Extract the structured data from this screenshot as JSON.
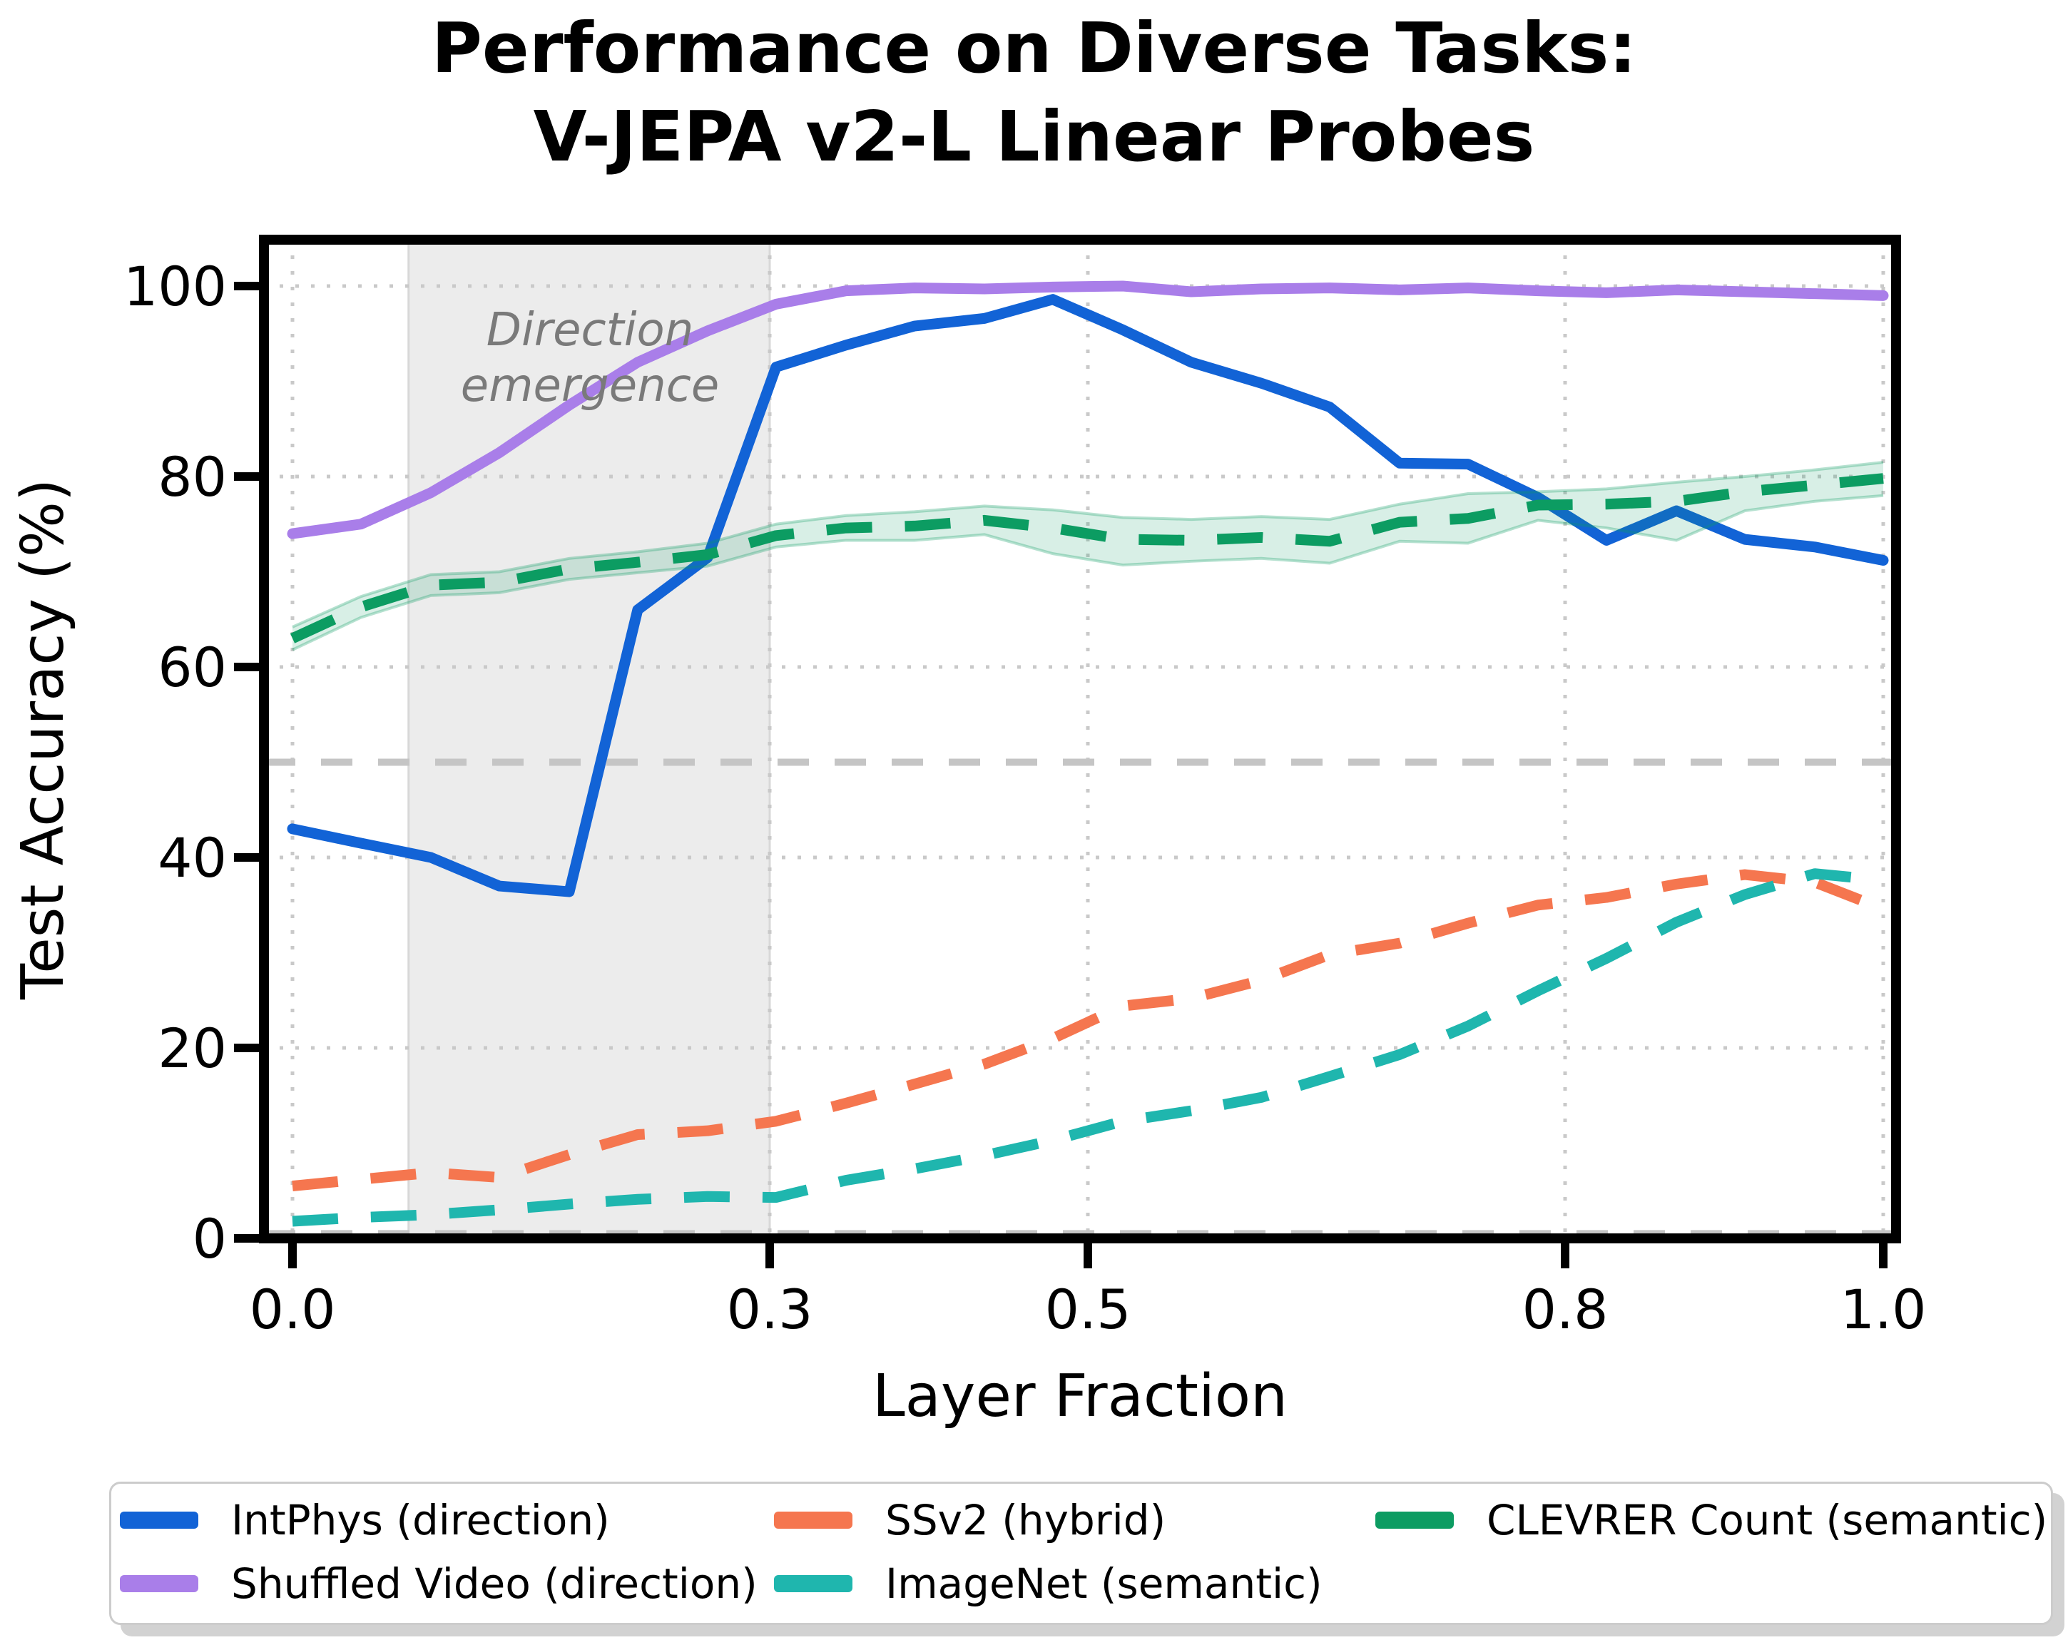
{
  "title": {
    "line1": "Performance on Diverse Tasks:",
    "line2": "V-JEPA v2-L Linear Probes"
  },
  "chart_data": {
    "type": "line",
    "title": "Performance on Diverse Tasks: V-JEPA v2-L Linear Probes",
    "xlabel": "Layer Fraction",
    "ylabel": "Test Accuracy (%)",
    "xlim": [
      -0.02,
      1.01
    ],
    "ylim": [
      0,
      105
    ],
    "grid": true,
    "legend_position": "bottom",
    "xticks": [
      "0.0",
      "0.3",
      "0.5",
      "0.8",
      "1.0"
    ],
    "xtick_values": [
      0.0,
      0.3,
      0.5,
      0.8,
      1.0
    ],
    "yticks": [
      "0",
      "20",
      "40",
      "60",
      "80",
      "100"
    ],
    "ytick_values": [
      0,
      20,
      40,
      60,
      80,
      100
    ],
    "chance_lines": [
      50,
      0.5
    ],
    "highlight_region": {
      "x0": 0.073,
      "x1": 0.3,
      "label_line1": "Direction",
      "label_line2": "emergence",
      "label": "Direction emergence",
      "fill_color": "#ececec",
      "label_color": "#7a7a7a"
    },
    "x": [
      0,
      0.043,
      0.087,
      0.13,
      0.174,
      0.217,
      0.261,
      0.304,
      0.348,
      0.391,
      0.435,
      0.478,
      0.522,
      0.565,
      0.609,
      0.652,
      0.696,
      0.739,
      0.783,
      0.826,
      0.87,
      0.913,
      0.957,
      1.0
    ],
    "series": [
      {
        "name": "IntPhys (direction)",
        "color": "#1263d6",
        "style": "solid",
        "values": [
          43,
          41.5,
          40,
          37,
          36.4,
          66,
          71.5,
          91.5,
          93.8,
          95.8,
          96.6,
          98.6,
          95.4,
          92,
          89.8,
          87.3,
          81.4,
          81.3,
          77.8,
          73.3,
          76.4,
          73.4,
          72.6,
          71.2
        ]
      },
      {
        "name": "Shuffled Video (direction)",
        "color": "#a97ee9",
        "style": "solid",
        "values": [
          74,
          75,
          78.3,
          82.5,
          87.5,
          92,
          95.3,
          98.1,
          99.5,
          99.8,
          99.7,
          99.9,
          100,
          99.4,
          99.7,
          99.8,
          99.6,
          99.8,
          99.5,
          99.3,
          99.6,
          99.4,
          99.2,
          99
        ]
      },
      {
        "name": "SSv2 (hybrid)",
        "color": "#f5764f",
        "style": "dashed",
        "values": [
          5.5,
          6.2,
          6.9,
          6.4,
          8.8,
          10.9,
          11.3,
          12.3,
          14.2,
          16.2,
          18.3,
          21,
          24.4,
          25.2,
          27.1,
          29.8,
          31,
          33.1,
          35,
          35.8,
          37.2,
          38.2,
          37.4,
          34.6
        ]
      },
      {
        "name": "ImageNet (semantic)",
        "color": "#1fb6ae",
        "style": "dashed",
        "values": [
          1.8,
          2.2,
          2.5,
          3,
          3.6,
          4.1,
          4.4,
          4.3,
          6.1,
          7.3,
          8.7,
          10.3,
          12.3,
          13.4,
          14.8,
          17,
          19.3,
          22.3,
          26,
          29.4,
          33.2,
          36.1,
          38.3,
          37.6
        ]
      },
      {
        "name": "CLEVRER Count (semantic)",
        "color": "#0c9c62",
        "style": "dashed",
        "values": [
          63,
          66.3,
          68.6,
          68.9,
          70.3,
          71,
          71.8,
          73.8,
          74.6,
          74.8,
          75.4,
          74.6,
          73.4,
          73.3,
          73.6,
          73.2,
          75.2,
          75.6,
          77,
          77.1,
          77.4,
          78.4,
          79.1,
          79.8
        ],
        "band_upper": [
          64.2,
          67.4,
          69.7,
          70,
          71.4,
          72.1,
          73,
          75,
          75.9,
          76.3,
          76.9,
          76.5,
          75.7,
          75.5,
          75.8,
          75.5,
          77.1,
          78.2,
          78.4,
          78.7,
          79.4,
          80,
          80.7,
          81.5
        ],
        "band_lower": [
          61.8,
          65.2,
          67.5,
          67.8,
          69.2,
          69.9,
          70.6,
          72.6,
          73.3,
          73.3,
          73.9,
          71.9,
          70.7,
          71.1,
          71.4,
          70.9,
          73.2,
          73,
          75.4,
          74.6,
          73.3,
          76.4,
          77.4,
          78
        ]
      }
    ],
    "style_colors": {
      "grid": "#c9c9c9",
      "chance_line": "#c5c5c5",
      "spine": "#000000",
      "band_alpha": 0.16
    }
  }
}
